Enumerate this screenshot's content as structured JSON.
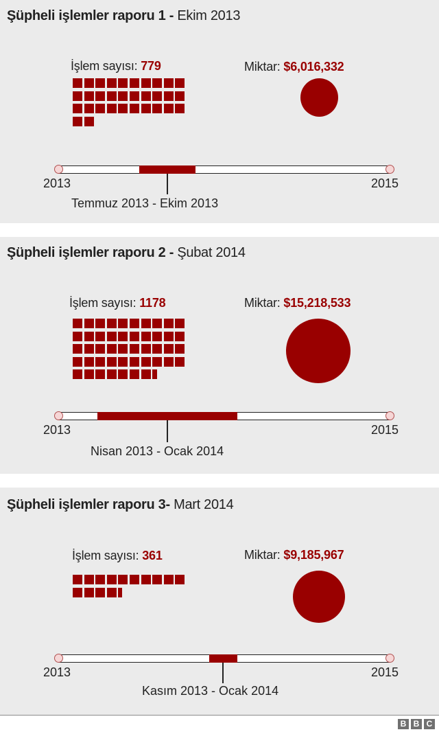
{
  "colors": {
    "accent": "#990000",
    "panel_bg": "#ebebeb",
    "text": "#222222"
  },
  "chart_data": [
    {
      "type": "table",
      "title": "Şüpheli işlemler raporu 1 - Ekim 2013",
      "transaction_count": 779,
      "amount_usd": 6016332,
      "period": "Temmuz 2013 - Ekim 2013",
      "timeline_range": [
        "2013",
        "2015"
      ],
      "squares_shown": 32
    },
    {
      "type": "table",
      "title": "Şüpheli işlemler raporu 2 - Şubat 2014",
      "transaction_count": 1178,
      "amount_usd": 15218533,
      "period": "Nisan 2013 - Ocak 2014",
      "timeline_range": [
        "2013",
        "2015"
      ],
      "squares_shown": 47.5
    },
    {
      "type": "table",
      "title": "Şüpheli işlemler raporu 3- Mart 2014",
      "transaction_count": 361,
      "amount_usd": 9185967,
      "period": "Kasım 2013 - Ocak 2014",
      "timeline_range": [
        "2013",
        "2015"
      ],
      "squares_shown": 14.4
    }
  ],
  "reports": [
    {
      "title_bold": "Şüpheli işlemler raporu 1 -",
      "title_date": " Ekim 2013",
      "count_label": "İşlem sayısı: ",
      "count_value": "779",
      "amount_label": "Miktar: ",
      "amount_value": "$6,016,332",
      "timeline_start": "2013",
      "timeline_end": "2015",
      "period": "Temmuz 2013 - Ekim 2013"
    },
    {
      "title_bold": "Şüpheli işlemler raporu 2 -",
      "title_date": " Şubat 2014",
      "count_label": "İşlem sayısı: ",
      "count_value": "1178",
      "amount_label": "Miktar: ",
      "amount_value": "$15,218,533",
      "timeline_start": "2013",
      "timeline_end": "2015",
      "period": "Nisan 2013 - Ocak 2014"
    },
    {
      "title_bold": "Şüpheli işlemler raporu 3-",
      "title_date": " Mart 2014",
      "count_label": "İşlem sayısı: ",
      "count_value": "361",
      "amount_label": "Miktar: ",
      "amount_value": "$9,185,967",
      "timeline_start": "2013",
      "timeline_end": "2015",
      "period": "Kasım 2013 - Ocak 2014"
    }
  ],
  "footer": {
    "logo": [
      "B",
      "B",
      "C"
    ]
  }
}
